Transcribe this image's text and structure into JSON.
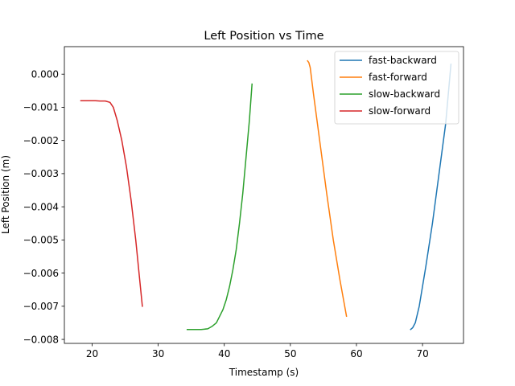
{
  "chart_data": {
    "type": "line",
    "title": "Left Position vs Time",
    "xlabel": "Timestamp (s)",
    "ylabel": "Left Position (m)",
    "xlim": [
      15.8,
      76.2
    ],
    "ylim": [
      -0.00812,
      0.00083
    ],
    "xticks": [
      20,
      30,
      40,
      50,
      60,
      70
    ],
    "xtick_labels": [
      "20",
      "30",
      "40",
      "50",
      "60",
      "70"
    ],
    "yticks": [
      0.0,
      -0.001,
      -0.002,
      -0.003,
      -0.004,
      -0.005,
      -0.006,
      -0.007,
      -0.008
    ],
    "ytick_labels": [
      "0.000",
      "−0.001",
      "−0.002",
      "−0.003",
      "−0.004",
      "−0.005",
      "−0.006",
      "−0.007",
      "−0.008"
    ],
    "grid": false,
    "legend_position": "upper right",
    "series": [
      {
        "name": "fast-backward",
        "color": "#1f77b4",
        "x": [
          68.2,
          68.5,
          68.9,
          69.5,
          70.5,
          71.5,
          72.5,
          73.5,
          74.3
        ],
        "y": [
          -0.0077,
          -0.00765,
          -0.0075,
          -0.007,
          -0.0058,
          -0.0045,
          -0.003,
          -0.0015,
          0.0003
        ]
      },
      {
        "name": "fast-forward",
        "color": "#ff7f0e",
        "x": [
          52.6,
          52.8,
          53.0,
          53.5,
          54.5,
          55.5,
          56.5,
          57.5,
          58.5
        ],
        "y": [
          0.0004,
          0.00035,
          0.0002,
          -0.0006,
          -0.0021,
          -0.0036,
          -0.005,
          -0.0062,
          -0.0073
        ]
      },
      {
        "name": "slow-backward",
        "color": "#2ca02c",
        "x": [
          34.4,
          35.5,
          36.5,
          37.5,
          38.2,
          38.8,
          39.3,
          39.8,
          40.3,
          40.8,
          41.3,
          41.8,
          42.3,
          42.8,
          43.3,
          43.8,
          44.2
        ],
        "y": [
          -0.0077,
          -0.0077,
          -0.0077,
          -0.00768,
          -0.0076,
          -0.0075,
          -0.0073,
          -0.0071,
          -0.0068,
          -0.0064,
          -0.0059,
          -0.0053,
          -0.0045,
          -0.0036,
          -0.0025,
          -0.0014,
          -0.0003
        ]
      },
      {
        "name": "slow-forward",
        "color": "#d62728",
        "x": [
          18.3,
          19.5,
          20.5,
          21.2,
          22.0,
          22.7,
          23.2,
          23.8,
          24.5,
          25.2,
          25.9,
          26.6,
          27.2,
          27.6
        ],
        "y": [
          -0.0008,
          -0.0008,
          -0.0008,
          -0.00081,
          -0.00081,
          -0.00085,
          -0.001,
          -0.0014,
          -0.002,
          -0.0028,
          -0.0038,
          -0.005,
          -0.0062,
          -0.007
        ]
      }
    ]
  }
}
